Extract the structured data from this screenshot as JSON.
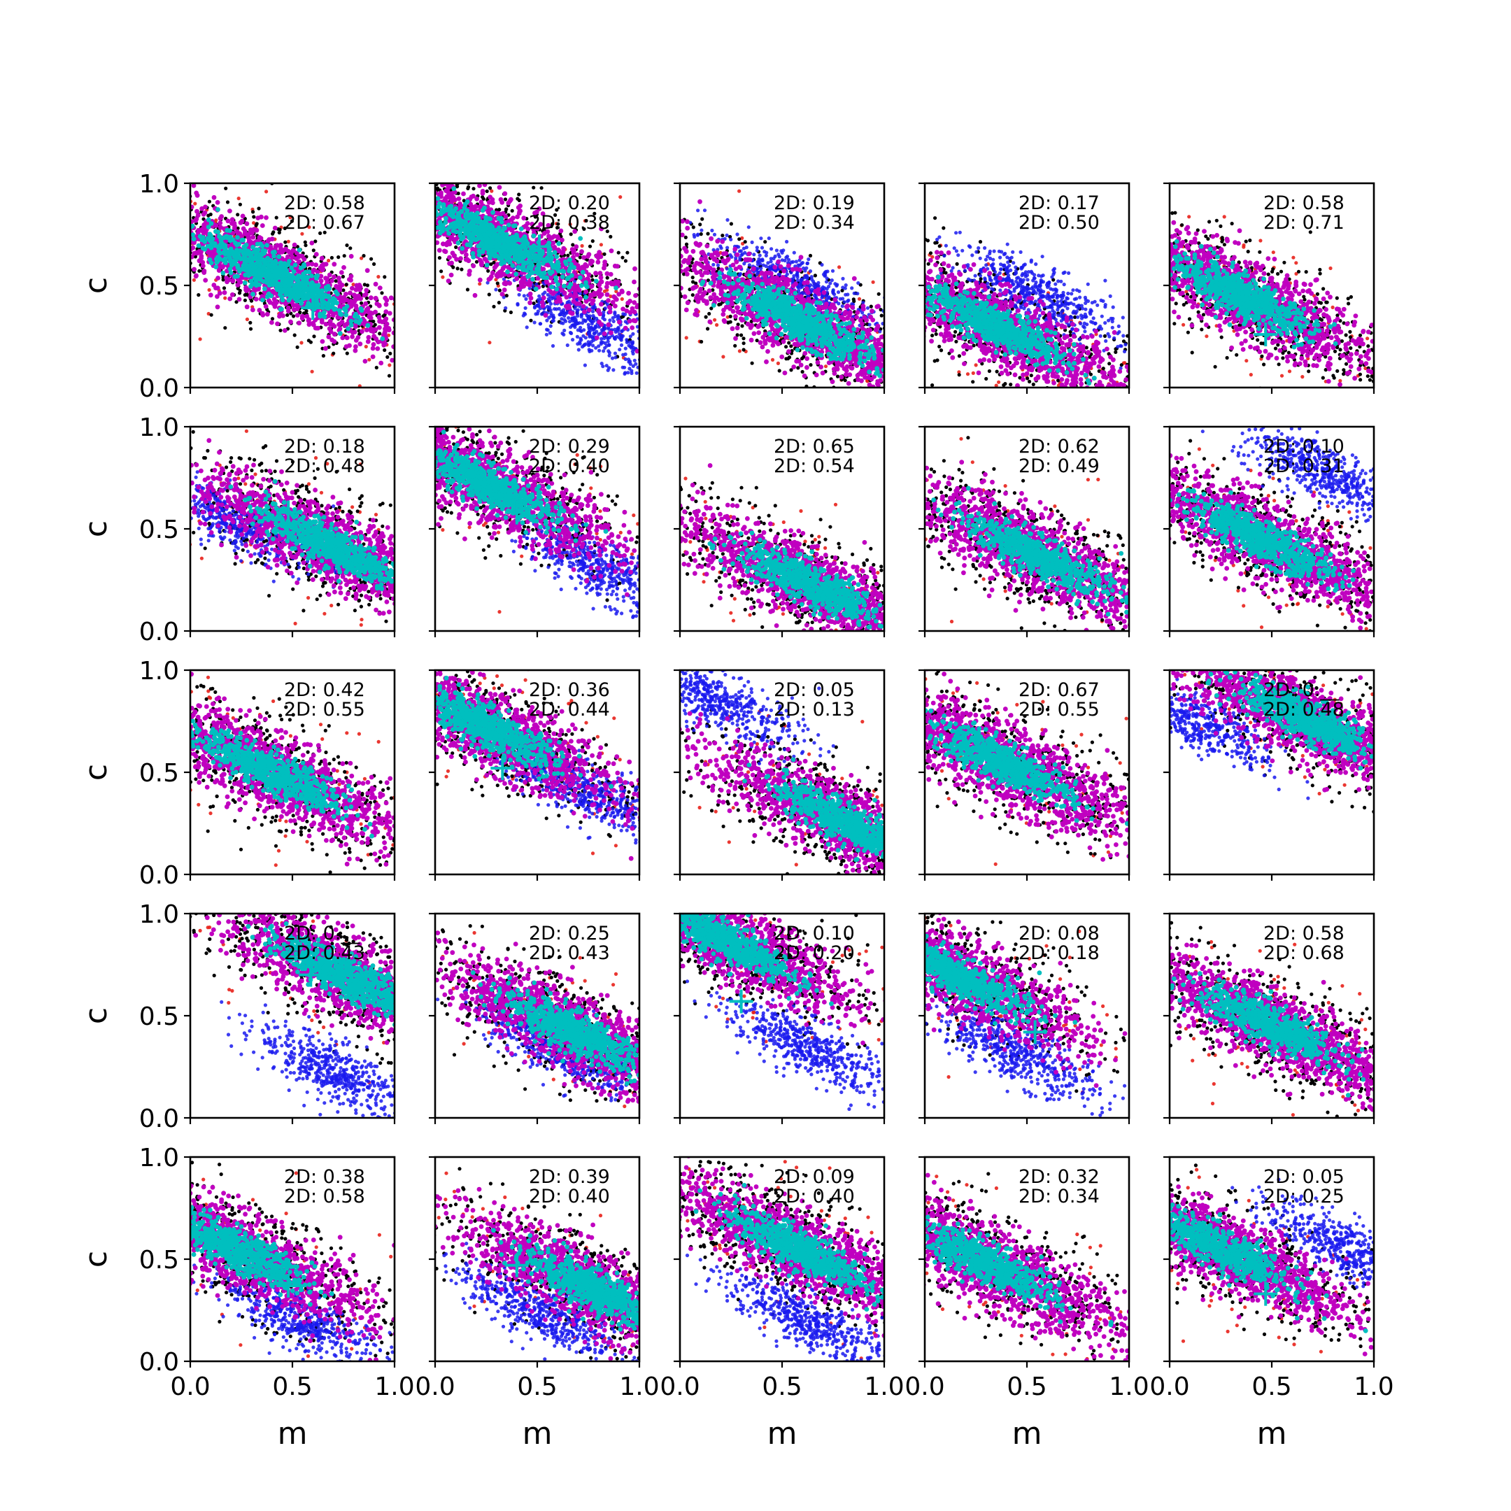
{
  "chart_data": {
    "type": "scatter",
    "layout": {
      "rows": 5,
      "cols": 5
    },
    "xlabel": "m",
    "ylabel": "c",
    "xlim": [
      0,
      1
    ],
    "ylim": [
      0,
      1
    ],
    "xticks": [
      "0.0",
      "0.5",
      "1.0"
    ],
    "yticks": [
      "0.0",
      "0.5",
      "1.0"
    ],
    "grid": false,
    "series_colors": {
      "red": "#e8211b",
      "black": "#000000",
      "blue": "#1a1aee",
      "magenta": "#c000c0",
      "cyan": "#00bfbf",
      "marker": "#00bfbf"
    },
    "panels": [
      {
        "label1": "2D: 0.58",
        "label2": "2D: 0.67",
        "center": [
          0.4,
          0.56
        ],
        "blue": null,
        "marker": [
          0.6,
          0.39
        ]
      },
      {
        "label1": "2D: 0.20",
        "label2": "2D: 0.38",
        "center": [
          0.3,
          0.72
        ],
        "blue": [
          0.78,
          0.3
        ],
        "marker": [
          0.51,
          0.69
        ]
      },
      {
        "label1": "2D: 0.19",
        "label2": "2D: 0.34",
        "center": [
          0.6,
          0.32
        ],
        "blue": [
          0.55,
          0.52
        ],
        "marker": null
      },
      {
        "label1": "2D: 0.17",
        "label2": "2D: 0.50",
        "center": [
          0.35,
          0.3
        ],
        "blue": [
          0.55,
          0.45
        ],
        "marker": null
      },
      {
        "label1": "2D: 0.58",
        "label2": "2D: 0.71",
        "center": [
          0.35,
          0.45
        ],
        "blue": null,
        "marker": [
          0.47,
          0.26
        ]
      },
      {
        "label1": "2D: 0.18",
        "label2": "2D: 0.48",
        "center": [
          0.68,
          0.42
        ],
        "blue": [
          0.2,
          0.55
        ],
        "marker": [
          0.48,
          0.58
        ]
      },
      {
        "label1": "2D: 0.29",
        "label2": "2D: 0.40",
        "center": [
          0.25,
          0.72
        ],
        "blue": [
          0.82,
          0.3
        ],
        "marker": [
          0.4,
          0.58
        ]
      },
      {
        "label1": "2D: 0.65",
        "label2": "2D: 0.54",
        "center": [
          0.65,
          0.22
        ],
        "blue": null,
        "marker": null
      },
      {
        "label1": "2D: 0.62",
        "label2": "2D: 0.49",
        "center": [
          0.55,
          0.37
        ],
        "blue": null,
        "marker": null
      },
      {
        "label1": "2D: 0.10",
        "label2": "2D: 0.31",
        "center": [
          0.45,
          0.45
        ],
        "blue": [
          0.75,
          0.78
        ],
        "marker": null
      },
      {
        "label1": "2D: 0.42",
        "label2": "2D: 0.55",
        "center": [
          0.4,
          0.5
        ],
        "blue": null,
        "marker": null
      },
      {
        "label1": "2D: 0.36",
        "label2": "2D: 0.44",
        "center": [
          0.25,
          0.72
        ],
        "blue": [
          0.72,
          0.42
        ],
        "marker": [
          0.33,
          0.52
        ]
      },
      {
        "label1": "2D: 0.05",
        "label2": "2D: 0.13",
        "center": [
          0.82,
          0.25
        ],
        "blue": [
          0.18,
          0.85
        ],
        "marker": [
          0.64,
          0.4
        ]
      },
      {
        "label1": "2D: 0.67",
        "label2": "2D: 0.55",
        "center": [
          0.38,
          0.55
        ],
        "blue": null,
        "marker": null
      },
      {
        "label1": "2D: 0.__",
        "label2": "2D: 0.48",
        "center": [
          0.68,
          0.75
        ],
        "blue": [
          0.12,
          0.75
        ],
        "marker": null
      },
      {
        "label1": "2D: 0.__",
        "label2": "2D: 0.43",
        "center": [
          0.78,
          0.68
        ],
        "blue": [
          0.72,
          0.22
        ],
        "marker": [
          0.59,
          0.7
        ]
      },
      {
        "label1": "2D: 0.25",
        "label2": "2D: 0.43",
        "center": [
          0.68,
          0.42
        ],
        "blue": [
          0.6,
          0.35
        ],
        "marker": null
      },
      {
        "label1": "2D: 0.10",
        "label2": "2D: 0.20",
        "center": [
          0.2,
          0.88
        ],
        "blue": [
          0.62,
          0.35
        ],
        "marker": [
          0.3,
          0.57
        ]
      },
      {
        "label1": "2D: 0.08",
        "label2": "2D: 0.18",
        "center": [
          0.15,
          0.7
        ],
        "blue": [
          0.45,
          0.32
        ],
        "marker": [
          0.54,
          0.42
        ]
      },
      {
        "label1": "2D: 0.58",
        "label2": "2D: 0.68",
        "center": [
          0.5,
          0.45
        ],
        "blue": null,
        "marker": null
      },
      {
        "label1": "2D: 0.38",
        "label2": "2D: 0.58",
        "center": [
          0.22,
          0.55
        ],
        "blue": [
          0.55,
          0.2
        ],
        "marker": [
          0.48,
          0.37
        ]
      },
      {
        "label1": "2D: 0.39",
        "label2": "2D: 0.40",
        "center": [
          0.78,
          0.35
        ],
        "blue": [
          0.5,
          0.25
        ],
        "marker": [
          0.4,
          0.47
        ]
      },
      {
        "label1": "2D: 0.09",
        "label2": "2D: 0.40",
        "center": [
          0.58,
          0.55
        ],
        "blue": [
          0.62,
          0.2
        ],
        "marker": null
      },
      {
        "label1": "2D: 0.32",
        "label2": "2D: 0.34",
        "center": [
          0.3,
          0.48
        ],
        "blue": null,
        "marker": null
      },
      {
        "label1": "2D: 0.05",
        "label2": "2D: 0.25",
        "center": [
          0.25,
          0.55
        ],
        "blue": [
          0.88,
          0.55
        ],
        "marker": [
          0.47,
          0.33
        ]
      }
    ]
  }
}
